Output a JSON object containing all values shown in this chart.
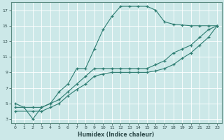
{
  "xlabel": "Humidex (Indice chaleur)",
  "bg_color": "#cce8e8",
  "grid_color": "#ffffff",
  "line_color": "#2e7d72",
  "xlim": [
    -0.5,
    23.5
  ],
  "ylim": [
    2.5,
    18
  ],
  "xticks": [
    0,
    1,
    2,
    3,
    4,
    5,
    6,
    7,
    8,
    9,
    10,
    11,
    12,
    13,
    14,
    15,
    16,
    17,
    18,
    19,
    20,
    21,
    22,
    23
  ],
  "yticks": [
    3,
    5,
    7,
    9,
    11,
    13,
    15,
    17
  ],
  "series1_x": [
    0,
    1,
    2,
    3,
    4,
    5,
    6,
    7,
    8,
    9,
    10,
    11,
    12,
    13,
    14,
    15,
    16,
    17,
    18,
    19,
    20,
    21,
    22,
    23
  ],
  "series1_y": [
    5,
    4.5,
    3,
    4.5,
    5,
    6.5,
    7.5,
    9.5,
    9.5,
    12,
    14.5,
    16.2,
    17.5,
    17.5,
    17.5,
    17.5,
    17.0,
    15.5,
    15.2,
    15.1,
    15,
    15,
    15,
    15
  ],
  "series2_x": [
    0,
    2,
    3,
    4,
    5,
    6,
    7,
    8,
    9,
    10,
    11,
    12,
    13,
    14,
    15,
    16,
    17,
    18,
    19,
    20,
    21,
    22,
    23
  ],
  "series2_y": [
    4.5,
    4.5,
    4.5,
    5,
    5.5,
    6.5,
    7.5,
    8.5,
    9.5,
    9.5,
    9.5,
    9.5,
    9.5,
    9.5,
    9.5,
    10,
    10.5,
    11.5,
    12.0,
    12.5,
    13.5,
    14.5,
    15
  ],
  "series3_x": [
    0,
    2,
    3,
    4,
    5,
    6,
    7,
    8,
    9,
    10,
    11,
    12,
    13,
    14,
    15,
    16,
    17,
    18,
    19,
    20,
    21,
    22,
    23
  ],
  "series3_y": [
    4,
    4,
    4,
    4.5,
    5,
    6,
    6.8,
    7.5,
    8.5,
    8.8,
    9,
    9,
    9,
    9,
    9,
    9.2,
    9.5,
    10,
    10.8,
    11.5,
    12.5,
    13.5,
    15
  ]
}
